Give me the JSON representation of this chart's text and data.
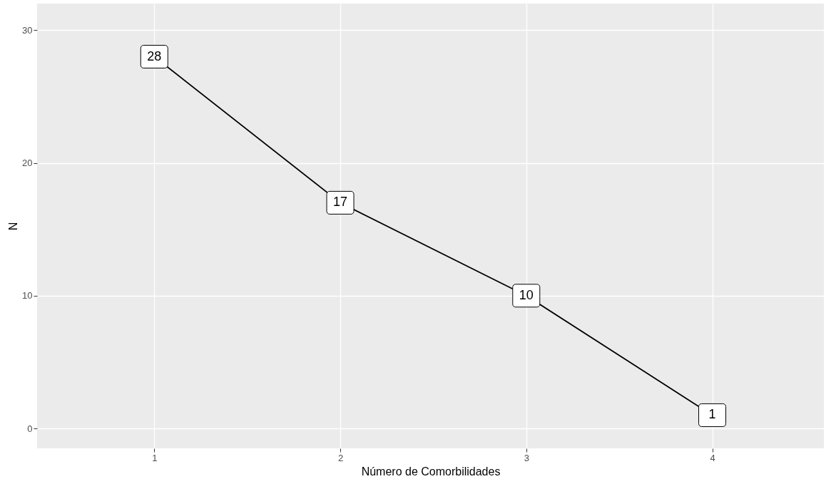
{
  "chart_data": {
    "type": "line",
    "xlabel": "Número de Comorbilidades",
    "ylabel": "N",
    "x": [
      1,
      2,
      3,
      4
    ],
    "series": [
      {
        "color": "#000000",
        "values": [
          28,
          17,
          10,
          1
        ]
      }
    ],
    "data_labels": true,
    "xlim": [
      0.37,
      4.6
    ],
    "xticks": [
      1,
      2,
      3,
      4
    ],
    "ylim": [
      -1.5,
      32
    ],
    "yticks": [
      0,
      10,
      20,
      30
    ],
    "grid": true,
    "marker": "square",
    "line_style": "solid"
  }
}
